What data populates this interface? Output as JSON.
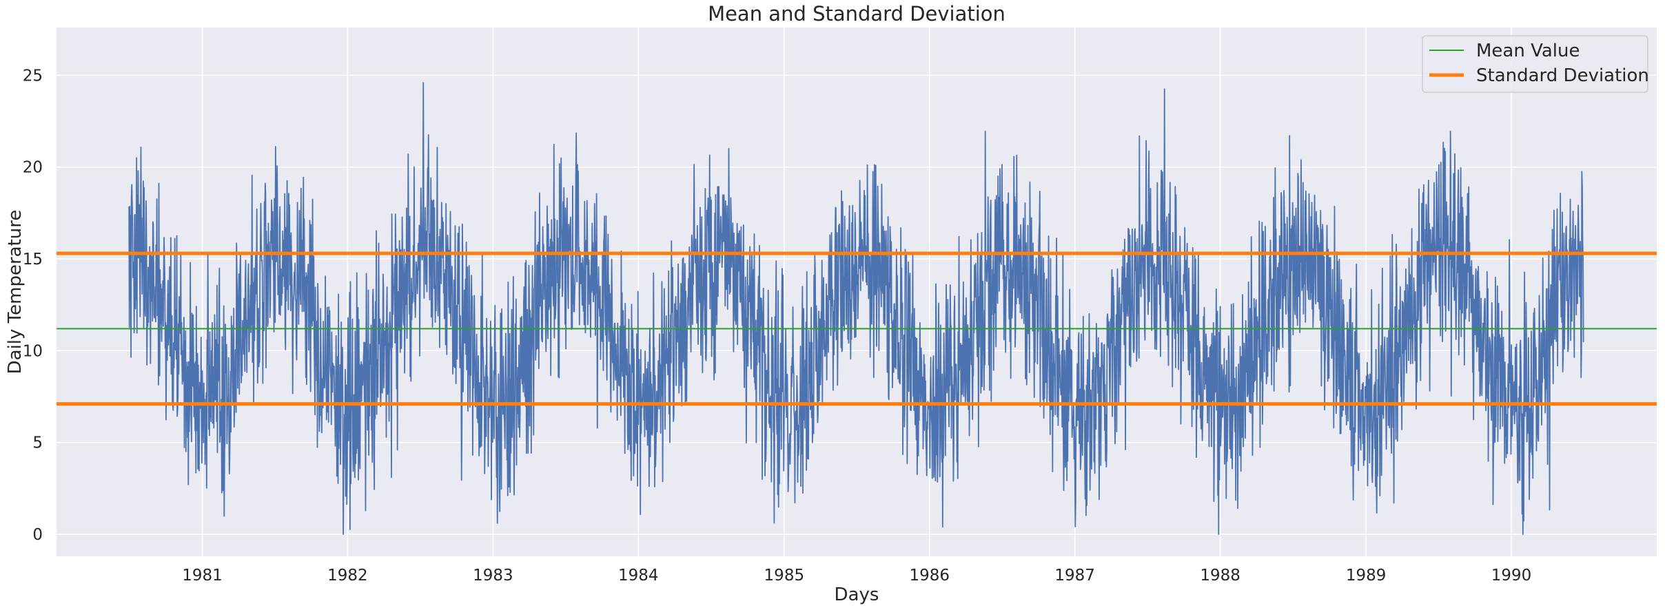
{
  "chart_data": {
    "type": "line",
    "title": "Mean and Standard Deviation",
    "xlabel": "Days",
    "ylabel": "Daily Temperature",
    "x_ticks": [
      "1981",
      "1982",
      "1983",
      "1984",
      "1985",
      "1986",
      "1987",
      "1988",
      "1989",
      "1990"
    ],
    "y_ticks": [
      0,
      5,
      10,
      15,
      20,
      25
    ],
    "xlim": [
      "1980-01-01",
      "1991-01-01"
    ],
    "ylim": [
      -1.2,
      27.6
    ],
    "grid": true,
    "legend_position": "top-right",
    "series": [
      {
        "name": "",
        "color": "#4c72b0",
        "x_start": "1980-07-01",
        "x_end": "1990-07-01",
        "frequency": "daily",
        "seasonal_cycle": {
          "peak_month": "July",
          "trough_month": "January",
          "peak_mean": 15.3,
          "trough_mean": 7.1
        },
        "y_min": 0.0,
        "y_max": 26.3
      },
      {
        "name": "Mean Value",
        "color": "#2ca02c",
        "y": 11.2
      },
      {
        "name": "Standard Deviation",
        "color": "#ff7f0e",
        "y": [
          7.1,
          15.3
        ]
      }
    ],
    "colors": {
      "background": "#eaeaf2",
      "grid": "#ffffff",
      "data_line": "#4c72b0",
      "mean_line": "#2ca02c",
      "std_line": "#ff7f0e"
    }
  }
}
